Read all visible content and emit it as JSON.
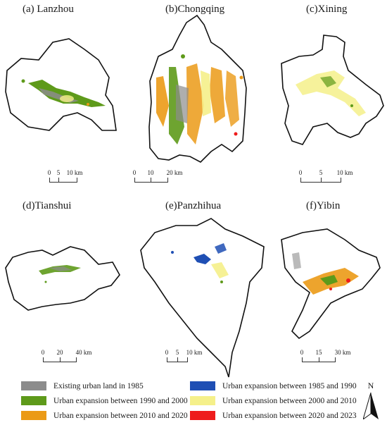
{
  "panels": {
    "a": {
      "title": "(a) Lanzhou",
      "scale": [
        "0",
        "5",
        "10 km"
      ]
    },
    "b": {
      "title": "(b)Chongqing",
      "scale": [
        "0",
        "10",
        "20 km"
      ]
    },
    "c": {
      "title": "(c)Xining",
      "scale": [
        "0",
        "5",
        "10 km"
      ]
    },
    "d": {
      "title": "(d)Tianshui",
      "scale": [
        "0",
        "20",
        "40 km"
      ]
    },
    "e": {
      "title": "(e)Panzhihua",
      "scale": [
        "0",
        "5",
        "10 km"
      ]
    },
    "f": {
      "title": "(f)Yibin",
      "scale": [
        "0",
        "15",
        "30 km"
      ]
    }
  },
  "legend": [
    {
      "label": "Existing urban land in 1985",
      "color": "#8c8c8c"
    },
    {
      "label": "Urban expansion between 1985 and 1990",
      "color": "#1f4fb4"
    },
    {
      "label": "Urban expansion between 1990 and 2000",
      "color": "#5e9a1a"
    },
    {
      "label": "Urban expansion between 2000 and 2010",
      "color": "#f5f08a"
    },
    {
      "label": "Urban expansion between 2010 and 2020",
      "color": "#eb9a16"
    },
    {
      "label": "Urban expansion between 2020 and 2023",
      "color": "#ee1c1c"
    }
  ],
  "north_label": "N"
}
